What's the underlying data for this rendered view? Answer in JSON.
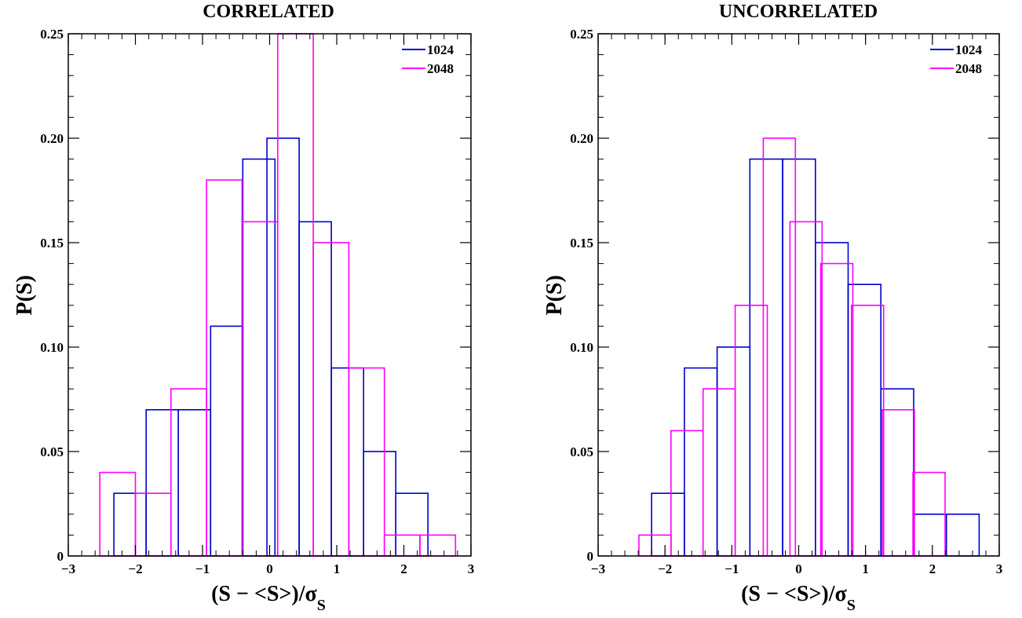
{
  "chart_data": [
    {
      "type": "histogram",
      "title": "CORRELATED",
      "xlabel": "(S − <S>)/σ",
      "xlabel_sub": "S",
      "ylabel": "P(S)",
      "xlim": [
        -3,
        3
      ],
      "ylim": [
        0,
        0.25
      ],
      "x_ticks": [
        "−3",
        "−2",
        "−1",
        "0",
        "1",
        "2",
        "3"
      ],
      "y_ticks": [
        "0",
        "0.05",
        "0.10",
        "0.15",
        "0.20",
        "0.25"
      ],
      "legend_position": "top-right",
      "series": [
        {
          "name": "1024",
          "color": "#0000cc",
          "bin_width": 0.48,
          "bins": [
            {
              "start": -2.32,
              "value": 0.03
            },
            {
              "start": -1.84,
              "value": 0.07
            },
            {
              "start": -1.36,
              "value": 0.07
            },
            {
              "start": -0.88,
              "value": 0.11
            },
            {
              "start": -0.4,
              "value": 0.19
            },
            {
              "start": -0.04,
              "value": 0.2
            },
            {
              "start": 0.44,
              "value": 0.16
            },
            {
              "start": 0.92,
              "value": 0.09
            },
            {
              "start": 1.4,
              "value": 0.05
            },
            {
              "start": 1.88,
              "value": 0.03
            }
          ]
        },
        {
          "name": "2048",
          "color": "#ff00ff",
          "bin_width": 0.53,
          "bins": [
            {
              "start": -2.53,
              "value": 0.04
            },
            {
              "start": -2.0,
              "value": 0.03
            },
            {
              "start": -1.47,
              "value": 0.08
            },
            {
              "start": -0.94,
              "value": 0.18
            },
            {
              "start": -0.41,
              "value": 0.16
            },
            {
              "start": 0.12,
              "value": 0.25
            },
            {
              "start": 0.65,
              "value": 0.15
            },
            {
              "start": 1.18,
              "value": 0.09
            },
            {
              "start": 1.71,
              "value": 0.01
            },
            {
              "start": 2.24,
              "value": 0.01
            }
          ]
        }
      ]
    },
    {
      "type": "histogram",
      "title": "UNCORRELATED",
      "xlabel": "(S − <S>)/σ",
      "xlabel_sub": "S",
      "ylabel": "P(S)",
      "xlim": [
        -3,
        3
      ],
      "ylim": [
        0,
        0.25
      ],
      "x_ticks": [
        "−3",
        "−2",
        "−1",
        "0",
        "1",
        "2",
        "3"
      ],
      "y_ticks": [
        "0",
        "0.05",
        "0.10",
        "0.15",
        "0.20",
        "0.25"
      ],
      "legend_position": "top-right",
      "series": [
        {
          "name": "1024",
          "color": "#0000cc",
          "bin_width": 0.49,
          "bins": [
            {
              "start": -2.2,
              "value": 0.03
            },
            {
              "start": -1.71,
              "value": 0.09
            },
            {
              "start": -1.22,
              "value": 0.1
            },
            {
              "start": -0.73,
              "value": 0.19
            },
            {
              "start": -0.24,
              "value": 0.19
            },
            {
              "start": 0.25,
              "value": 0.15
            },
            {
              "start": 0.74,
              "value": 0.13
            },
            {
              "start": 1.23,
              "value": 0.08
            },
            {
              "start": 1.72,
              "value": 0.02
            },
            {
              "start": 2.21,
              "value": 0.02
            }
          ]
        },
        {
          "name": "2048",
          "color": "#ff00ff",
          "bin_width": 0.48,
          "bins": [
            {
              "start": -2.39,
              "value": 0.01
            },
            {
              "start": -1.91,
              "value": 0.06
            },
            {
              "start": -1.43,
              "value": 0.08
            },
            {
              "start": -0.95,
              "value": 0.12
            },
            {
              "start": -0.53,
              "value": 0.2
            },
            {
              "start": -0.13,
              "value": 0.16
            },
            {
              "start": 0.33,
              "value": 0.14
            },
            {
              "start": 0.79,
              "value": 0.12
            },
            {
              "start": 1.25,
              "value": 0.07
            },
            {
              "start": 1.71,
              "value": 0.04
            }
          ]
        }
      ]
    }
  ]
}
